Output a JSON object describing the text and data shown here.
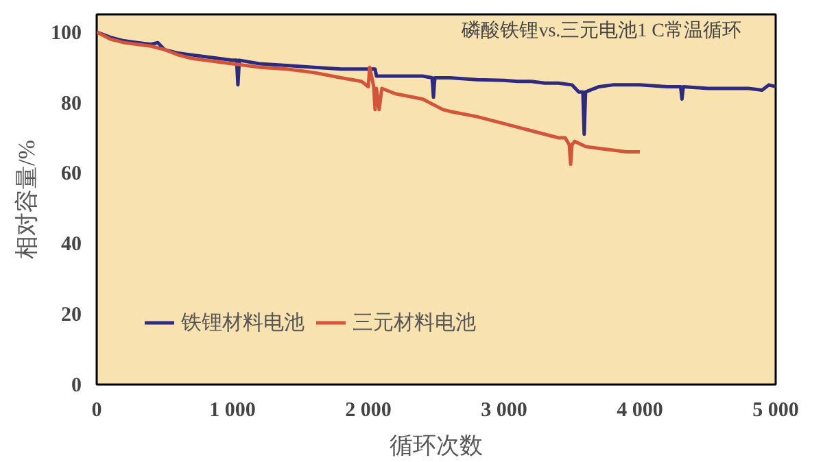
{
  "chart_data": {
    "type": "line",
    "title": "磷酸铁锂vs.三元电池1 C常温循环",
    "xlabel": "循环次数",
    "ylabel": "相对容量/%",
    "xlim": [
      0,
      5000
    ],
    "ylim": [
      0,
      105
    ],
    "xticks": [
      0,
      {
        "value": 1000,
        "label": "1 000"
      },
      {
        "value": 2000,
        "label": "2 000"
      },
      {
        "value": 3000,
        "label": "3 000"
      },
      {
        "value": 4000,
        "label": "4 000"
      },
      {
        "value": 5000,
        "label": "5 000"
      }
    ],
    "yticks": [
      0,
      20,
      40,
      60,
      80,
      100
    ],
    "grid": false,
    "legend": "bottom left",
    "line_style": "solid",
    "marker": "none",
    "series": [
      {
        "name": "铁锂材料电池",
        "color": "#2e2a80",
        "x": [
          0,
          100,
          200,
          300,
          400,
          450,
          500,
          600,
          700,
          800,
          900,
          1000,
          1030,
          1040,
          1050,
          1200,
          1400,
          1600,
          1800,
          2000,
          2050,
          2060,
          2200,
          2400,
          2470,
          2480,
          2490,
          2600,
          2800,
          3000,
          3100,
          3200,
          3300,
          3400,
          3500,
          3550,
          3580,
          3590,
          3600,
          3700,
          3800,
          3900,
          4000,
          4200,
          4300,
          4310,
          4320,
          4500,
          4700,
          4800,
          4900,
          4950,
          5000
        ],
        "values": [
          100,
          98.5,
          97.5,
          97,
          96.5,
          97,
          95,
          94,
          93.5,
          93,
          92.5,
          92,
          92,
          85,
          92,
          91,
          90.5,
          90,
          89.5,
          89.5,
          89.5,
          87.5,
          87.5,
          87.5,
          87,
          81.5,
          87,
          87,
          86.5,
          86.3,
          86,
          86,
          85.5,
          85.5,
          85,
          83,
          83,
          71,
          83,
          84.5,
          85,
          85,
          85,
          84.5,
          84.5,
          81,
          84.5,
          84,
          84,
          84,
          83.5,
          85,
          84.5
        ]
      },
      {
        "name": "三元材料电池",
        "color": "#d2553a",
        "x": [
          0,
          100,
          200,
          300,
          400,
          500,
          600,
          700,
          800,
          900,
          1000,
          1200,
          1400,
          1500,
          1600,
          1800,
          1950,
          2000,
          2010,
          2040,
          2050,
          2060,
          2080,
          2100,
          2200,
          2400,
          2550,
          2600,
          2800,
          3000,
          3200,
          3400,
          3450,
          3480,
          3490,
          3500,
          3520,
          3600,
          3700,
          3800,
          3900,
          4000
        ],
        "values": [
          100,
          98,
          97,
          96.5,
          96,
          95,
          93.5,
          92.5,
          92,
          91.5,
          91,
          90,
          89.5,
          89,
          88.5,
          87,
          86,
          84.5,
          90,
          84.5,
          78,
          84,
          78,
          84,
          82.5,
          81,
          78,
          77.5,
          76,
          74,
          72,
          70,
          70,
          68,
          62.5,
          68,
          69,
          67.5,
          67,
          66.5,
          66,
          66
        ]
      }
    ]
  }
}
